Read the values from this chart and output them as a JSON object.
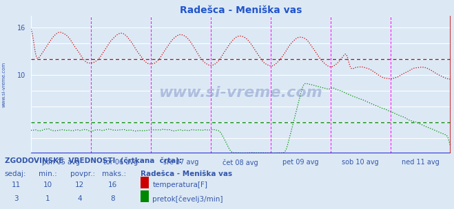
{
  "title": "Radešca - Meniška vas",
  "title_color": "#2255cc",
  "plot_bg_color": "#dce9f5",
  "fig_bg_color": "#dce9f5",
  "ylim": [
    0,
    17.5
  ],
  "ytick_vals": [
    10,
    16
  ],
  "xlabels": [
    "pon 05 avg",
    "tor 06 avg",
    "sre 07 avg",
    "čet 08 avg",
    "pet 09 avg",
    "sob 10 avg",
    "ned 11 avg"
  ],
  "grid_color": "#ffffff",
  "vline_color": "#ff00ff",
  "temp_color": "#cc0000",
  "flow_color": "#008800",
  "temp_avg": 12.0,
  "flow_avg": 4.0,
  "watermark": "www.si-vreme.com",
  "legend_title": "Radešca - Meniška vas",
  "legend_line1": "temperatura[F]",
  "legend_line2": "pretok[čevelj3/min]",
  "info_header": "ZGODOVINSKE  VREDNOSTI  (črtkana  črta):",
  "col_headers": [
    "sedaj:",
    "min.:",
    "povpr.:",
    "maks.:"
  ],
  "row1": [
    "11",
    "10",
    "12",
    "16"
  ],
  "row2": [
    "3",
    "1",
    "4",
    "8"
  ],
  "text_color": "#3355aa",
  "left_label": "www.si-vreme.com",
  "border_bottom_color": "#0000cc",
  "border_right_color": "#cc0000"
}
